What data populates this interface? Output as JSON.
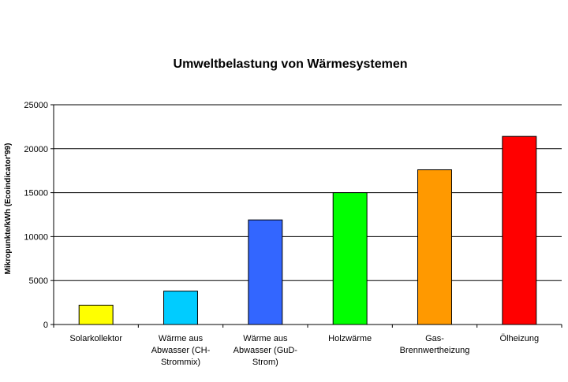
{
  "chart_data": {
    "type": "bar",
    "title": "Umweltbelastung von Wärmesystemen",
    "xlabel": "",
    "ylabel": "Mikropunkte/kWh (Ecoindicator'99)",
    "ylim": [
      0,
      25000
    ],
    "yticks": [
      0,
      5000,
      10000,
      15000,
      20000,
      25000
    ],
    "ytick_labels": [
      "0",
      "5000",
      "10000",
      "15000",
      "20000",
      "25000"
    ],
    "grid": true,
    "legend": "none",
    "categories": [
      [
        "Solarkollektor"
      ],
      [
        "Wärme aus",
        "Abwasser (CH-",
        "Strommix)"
      ],
      [
        "Wärme aus",
        "Abwasser (GuD-",
        "Strom)"
      ],
      [
        "Holzwärme"
      ],
      [
        "Gas-",
        "Brennwertheizung"
      ],
      [
        "Ölheizung"
      ]
    ],
    "values": [
      2200,
      3800,
      11900,
      15000,
      17600,
      21400
    ],
    "colors": [
      "#ffff00",
      "#00ccff",
      "#3366ff",
      "#00ff00",
      "#ff9900",
      "#ff0000"
    ]
  }
}
